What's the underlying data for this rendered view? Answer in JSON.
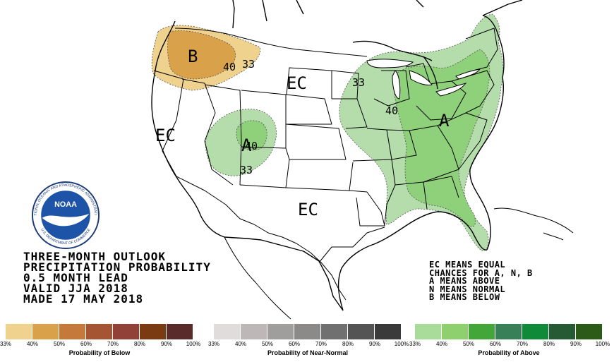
{
  "map_labels": {
    "below_b": "B",
    "below_40": "40",
    "below_33": "33",
    "ec_north": "EC",
    "ec_west": "EC",
    "ec_south": "EC",
    "above_a_west": "A",
    "above_40_west": "40",
    "above_33_west": "33",
    "above_33_midwest": "33",
    "above_40_east": "40",
    "above_a_east": "A"
  },
  "logo": {
    "text": "NOAA",
    "ring_top": "NATIONAL OCEANIC AND ATMOSPHERIC ADMINISTRATION",
    "ring_bottom": "U.S. DEPARTMENT OF COMMERCE"
  },
  "title_lines": [
    "THREE-MONTH OUTLOOK",
    "PRECIPITATION PROBABILITY",
    "0.5 MONTH LEAD",
    "VALID JJA 2018",
    "MADE 17 MAY 2018"
  ],
  "key_lines": [
    "EC MEANS EQUAL",
    "CHANCES FOR A, N, B",
    "A MEANS ABOVE",
    "N MEANS NORMAL",
    "B MEANS BELOW"
  ],
  "scales": [
    {
      "title": "Probability of Below",
      "colors": [
        "#f0d28f",
        "#d9a24a",
        "#c57a3c",
        "#a65533",
        "#914138",
        "#7b3b12",
        "#5a2b2b"
      ],
      "ticks": [
        "33%",
        "40%",
        "50%",
        "60%",
        "70%",
        "80%",
        "90%",
        "100%"
      ]
    },
    {
      "title": "Probability of Near-Normal",
      "colors": [
        "#e0dcdc",
        "#bdb7b7",
        "#a09d9d",
        "#8c8989",
        "#707070",
        "#555454",
        "#3b3a3a"
      ],
      "ticks": [
        "33%",
        "40%",
        "50%",
        "60%",
        "70%",
        "80%",
        "90%",
        "100%"
      ]
    },
    {
      "title": "Probability of Above",
      "colors": [
        "#a9dc9a",
        "#8fd06e",
        "#43a638",
        "#378058",
        "#0f8a39",
        "#255a35",
        "#2c5a17"
      ],
      "ticks": [
        "33%",
        "40%",
        "50%",
        "60%",
        "70%",
        "80%",
        "90%",
        "100%"
      ]
    }
  ],
  "colors": {
    "below_33": "#f0d28f",
    "below_40": "#d9a24a",
    "above_33": "#b4ddab",
    "above_40": "#8fd07a"
  }
}
